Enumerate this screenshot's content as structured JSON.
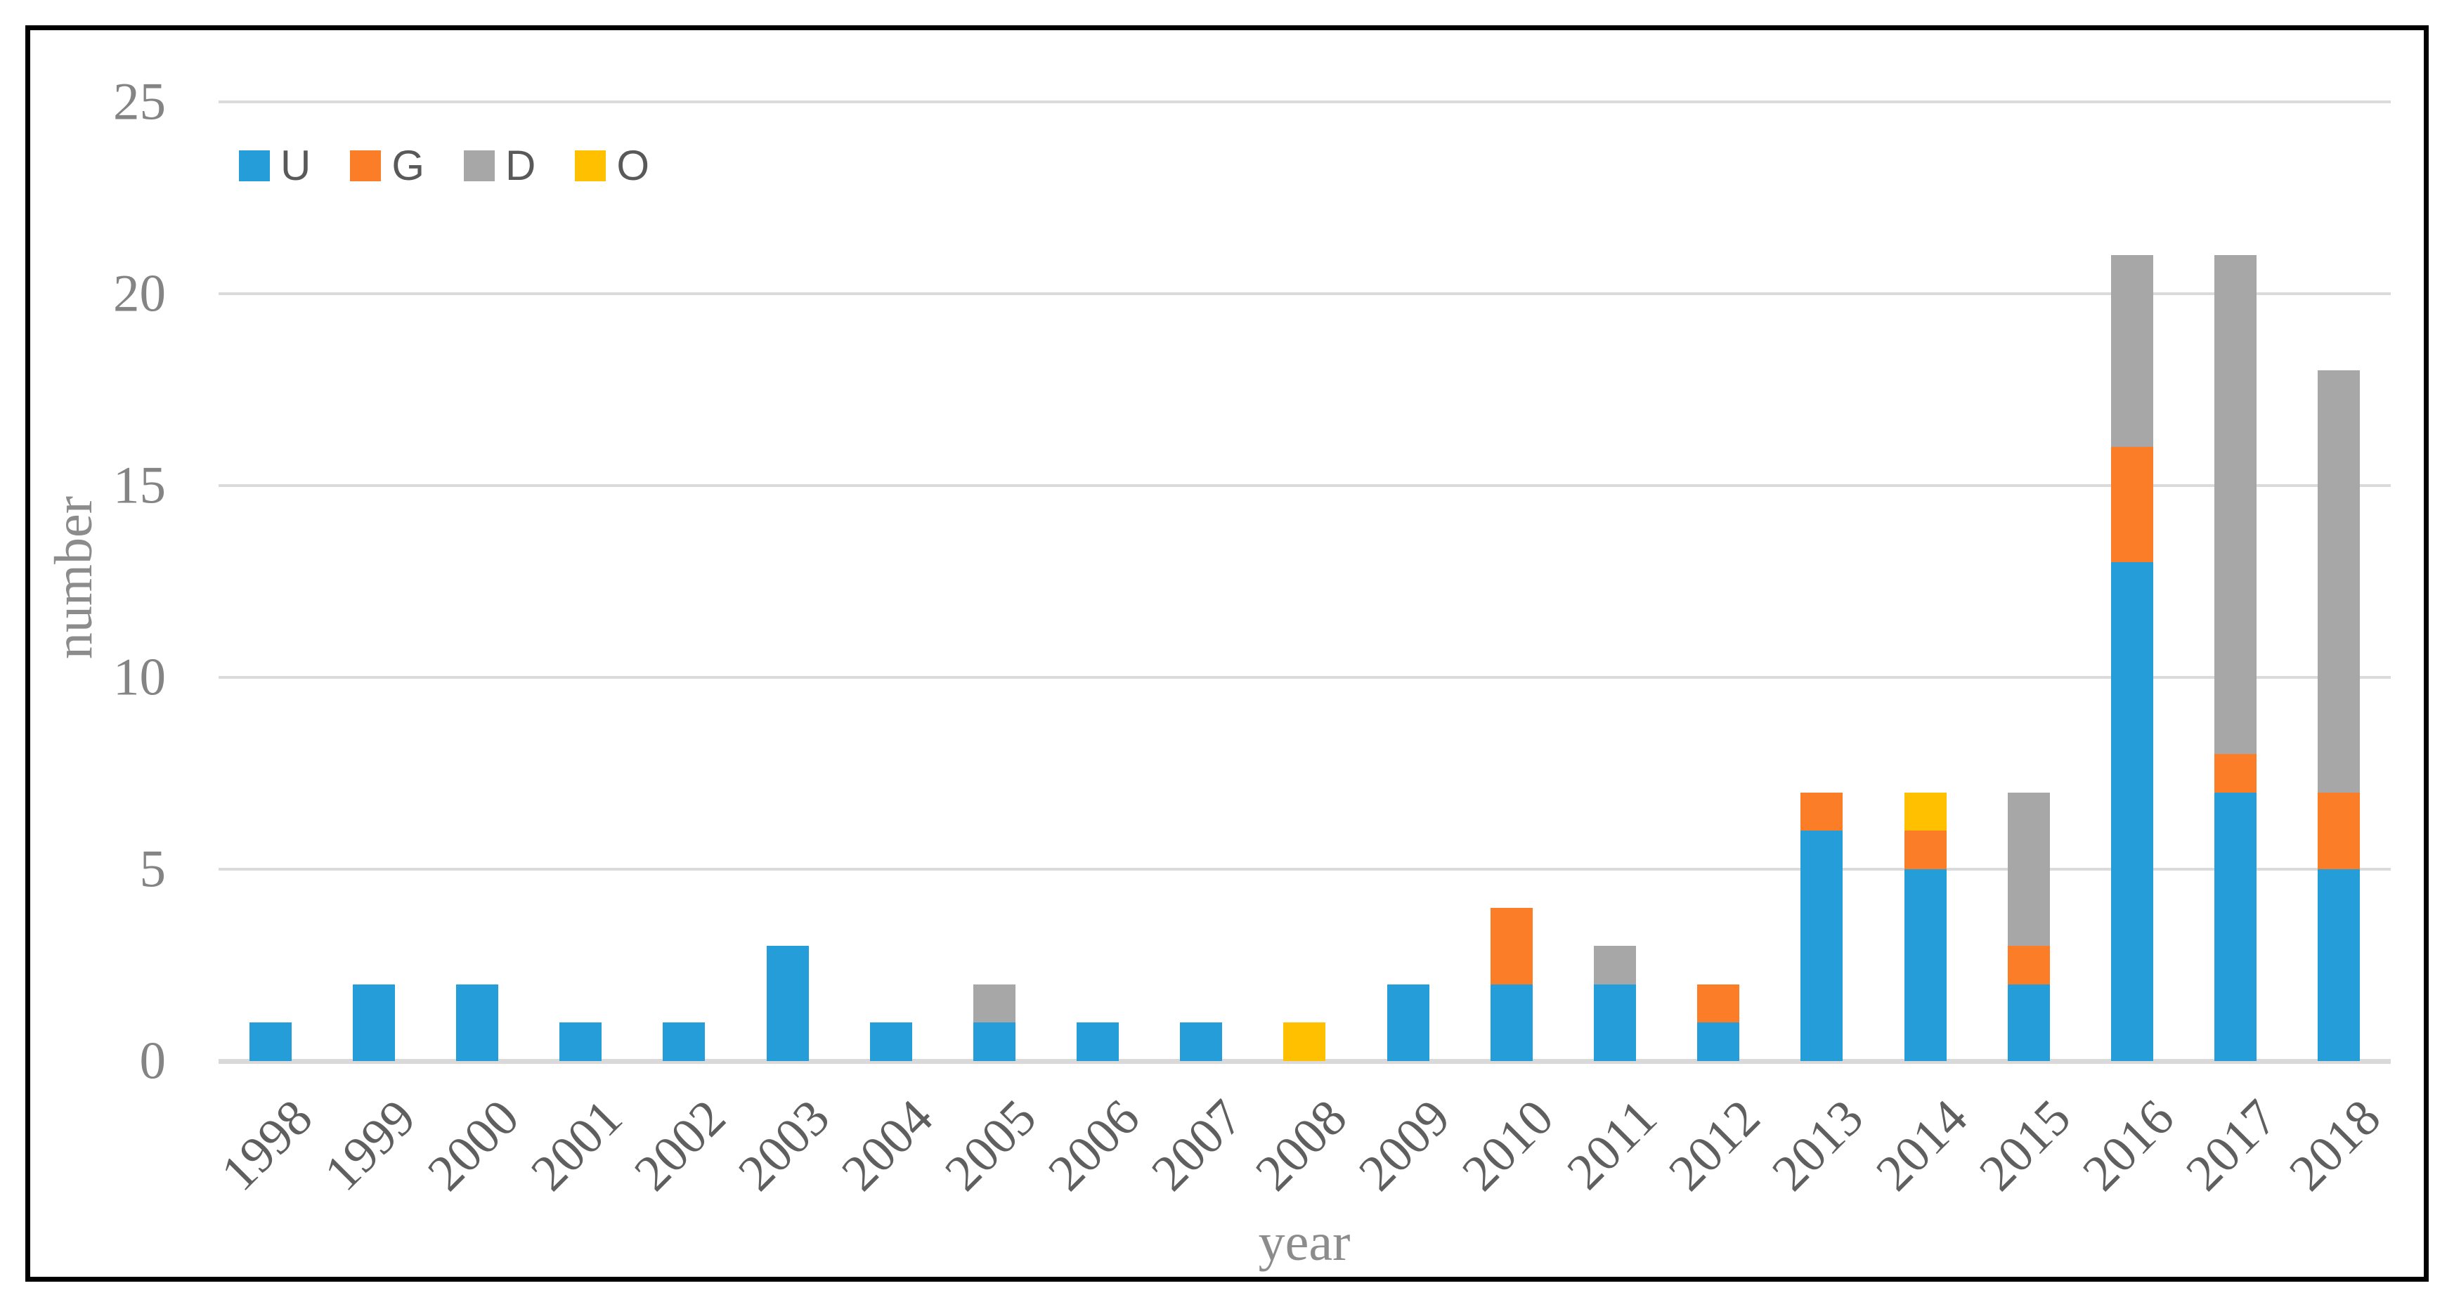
{
  "chart_data": {
    "type": "bar",
    "stacked": true,
    "title": "",
    "xlabel": "year",
    "ylabel": "number",
    "categories": [
      "1998",
      "1999",
      "2000",
      "2001",
      "2002",
      "2003",
      "2004",
      "2005",
      "2006",
      "2007",
      "2008",
      "2009",
      "2010",
      "2011",
      "2012",
      "2013",
      "2014",
      "2015",
      "2016",
      "2017",
      "2018"
    ],
    "series": [
      {
        "name": "U",
        "color": "#249DD8",
        "values": [
          1,
          2,
          2,
          1,
          1,
          3,
          1,
          1,
          1,
          1,
          0,
          2,
          2,
          2,
          1,
          6,
          5,
          2,
          13,
          7,
          5
        ]
      },
      {
        "name": "G",
        "color": "#FB7D27",
        "values": [
          0,
          0,
          0,
          0,
          0,
          0,
          0,
          0,
          0,
          0,
          0,
          0,
          2,
          0,
          1,
          1,
          1,
          1,
          3,
          1,
          2
        ]
      },
      {
        "name": "D",
        "color": "#A8A7A7",
        "values": [
          0,
          0,
          0,
          0,
          0,
          0,
          0,
          1,
          0,
          0,
          0,
          0,
          0,
          1,
          0,
          0,
          0,
          4,
          5,
          13,
          11
        ]
      },
      {
        "name": "O",
        "color": "#FFC000",
        "values": [
          0,
          0,
          0,
          0,
          0,
          0,
          0,
          0,
          0,
          0,
          1,
          0,
          0,
          0,
          0,
          0,
          1,
          0,
          0,
          0,
          0
        ]
      }
    ],
    "totals": [
      1,
      2,
      2,
      1,
      1,
      3,
      1,
      2,
      1,
      1,
      1,
      2,
      4,
      3,
      2,
      7,
      7,
      7,
      21,
      21,
      18
    ],
    "yticks": [
      0,
      5,
      10,
      15,
      20,
      25
    ],
    "ylim": [
      0,
      25
    ],
    "grid": "horizontal-only",
    "legend_position": "top-left-inside",
    "legend_labels": [
      "U",
      "G",
      "D",
      "O"
    ]
  },
  "styles": {
    "border_color": "#000000",
    "background": "#FFFFFF",
    "gridline_color": "#DBDBDB",
    "baseline_color": "#D9D9D9",
    "ytick_text_color": "#848484",
    "xtick_text_color": "#5F5F5F",
    "axis_title_color": "#8C8C8C",
    "legend_text_color": "#595959"
  }
}
